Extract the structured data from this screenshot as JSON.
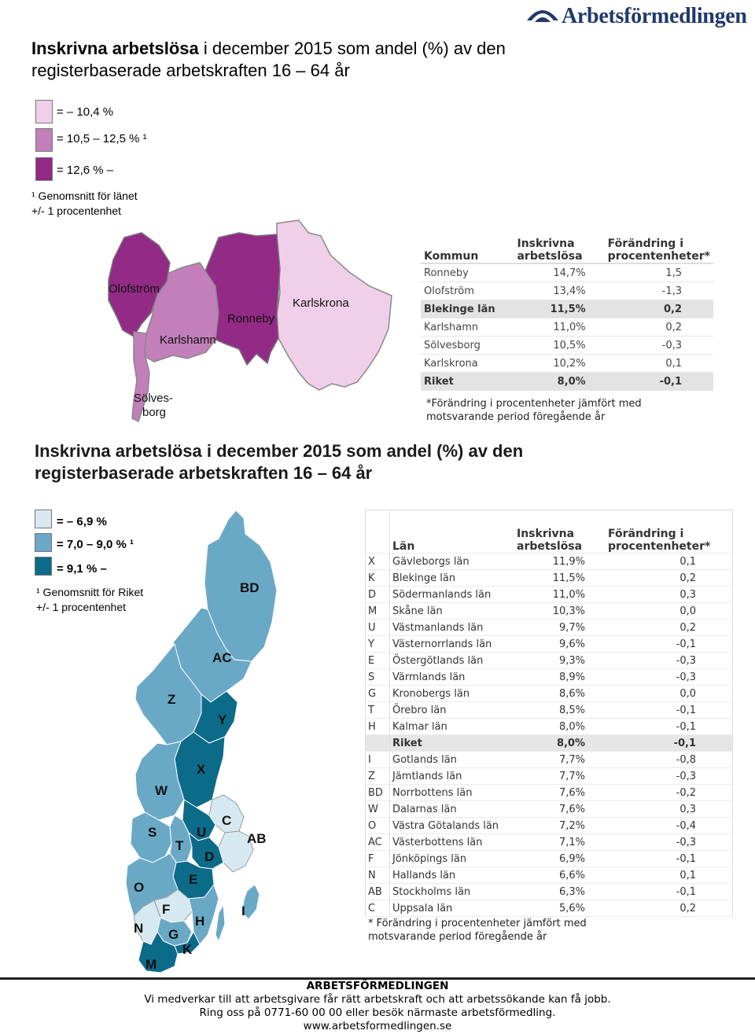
{
  "logo": {
    "text": "Arbetsförmedlingen",
    "icon": "arbetsformedlingen-logo-icon"
  },
  "title1": {
    "bold": "Inskrivna arbetslösa",
    "rest": " i december 2015 som andel (%) av den registerbaserade arbetskraften 16 – 64 år"
  },
  "legend1": {
    "items": [
      "= – 10,4 %",
      "= 10,5 – 12,5 % ¹",
      "= 12,6 % –"
    ],
    "colors": [
      "#f0d0e8",
      "#c27fba",
      "#922a86"
    ],
    "note_line1": "¹ Genomsnitt för länet",
    "note_line2": "+/- 1 procentenhet"
  },
  "region_map": {
    "labels": [
      "Olofström",
      "Karlshamn",
      "Ronneby",
      "Karlskrona",
      "Sölves-",
      "borg"
    ]
  },
  "table1": {
    "headers": [
      "Kommun",
      "Inskrivna arbetslösa",
      "Förändring i procentenheter*"
    ],
    "rows": [
      {
        "name": "Ronneby",
        "value": "14,7%",
        "change": "1,5",
        "hl": false
      },
      {
        "name": "Olofström",
        "value": "13,4%",
        "change": "-1,3",
        "hl": false
      },
      {
        "name": "Blekinge län",
        "value": "11,5%",
        "change": "0,2",
        "hl": true
      },
      {
        "name": "Karlshamn",
        "value": "11,0%",
        "change": "0,2",
        "hl": false
      },
      {
        "name": "Sölvesborg",
        "value": "10,5%",
        "change": "-0,3",
        "hl": false
      },
      {
        "name": "Karlskrona",
        "value": "10,2%",
        "change": "0,1",
        "hl": false
      },
      {
        "name": "Riket",
        "value": "8,0%",
        "change": "-0,1",
        "hl": true
      }
    ],
    "note_line1": "*Förändring i procentenheter jämfört med",
    "note_line2": "motsvarande period föregående år"
  },
  "title2": "Inskrivna arbetslösa i december 2015 som andel (%) av den registerbaserade arbetskraften 16 – 64 år",
  "legend2": {
    "items": [
      "= – 6,9 %",
      "= 7,0 – 9,0 % ¹",
      "= 9,1 % –"
    ],
    "colors": [
      "#d6e9f0",
      "#6aa9c6",
      "#0d6b8a"
    ],
    "note_line1": "¹ Genomsnitt för Riket",
    "note_line2": "+/- 1 procentenhet"
  },
  "sweden_map": {
    "labels": [
      "BD",
      "AC",
      "Z",
      "Y",
      "X",
      "W",
      "C",
      "S",
      "U",
      "AB",
      "T",
      "D",
      "O",
      "E",
      "F",
      "H",
      "I",
      "N",
      "G",
      "K",
      "M"
    ]
  },
  "table2": {
    "headers": [
      "",
      "Län",
      "Inskrivna arbetslösa",
      "Förändring i procentenheter*"
    ],
    "rows": [
      {
        "code": "X",
        "name": "Gävleborgs län",
        "value": "11,9%",
        "change": "0,1",
        "hl": false
      },
      {
        "code": "K",
        "name": "Blekinge län",
        "value": "11,5%",
        "change": "0,2",
        "hl": false
      },
      {
        "code": "D",
        "name": "Södermanlands län",
        "value": "11,0%",
        "change": "0,3",
        "hl": false
      },
      {
        "code": "M",
        "name": "Skåne län",
        "value": "10,3%",
        "change": "0,0",
        "hl": false
      },
      {
        "code": "U",
        "name": "Västmanlands län",
        "value": "9,7%",
        "change": "0,2",
        "hl": false
      },
      {
        "code": "Y",
        "name": "Västernorrlands län",
        "value": "9,6%",
        "change": "-0,1",
        "hl": false
      },
      {
        "code": "E",
        "name": "Östergötlands län",
        "value": "9,3%",
        "change": "-0,3",
        "hl": false
      },
      {
        "code": "S",
        "name": "Värmlands län",
        "value": "8,9%",
        "change": "-0,3",
        "hl": false
      },
      {
        "code": "G",
        "name": "Kronobergs län",
        "value": "8,6%",
        "change": "0,0",
        "hl": false
      },
      {
        "code": "T",
        "name": "Örebro län",
        "value": "8,5%",
        "change": "-0,1",
        "hl": false
      },
      {
        "code": "H",
        "name": "Kalmar län",
        "value": "8,0%",
        "change": "-0,1",
        "hl": false
      },
      {
        "code": "",
        "name": "Riket",
        "value": "8,0%",
        "change": "-0,1",
        "hl": true
      },
      {
        "code": "I",
        "name": "Gotlands län",
        "value": "7,7%",
        "change": "-0,8",
        "hl": false
      },
      {
        "code": "Z",
        "name": "Jämtlands län",
        "value": "7,7%",
        "change": "-0,3",
        "hl": false
      },
      {
        "code": "BD",
        "name": "Norrbottens län",
        "value": "7,6%",
        "change": "-0,2",
        "hl": false
      },
      {
        "code": "W",
        "name": "Dalarnas län",
        "value": "7,6%",
        "change": "0,3",
        "hl": false
      },
      {
        "code": "O",
        "name": "Västra Götalands län",
        "value": "7,2%",
        "change": "-0,4",
        "hl": false
      },
      {
        "code": "AC",
        "name": "Västerbottens län",
        "value": "7,1%",
        "change": "-0,3",
        "hl": false
      },
      {
        "code": "F",
        "name": "Jönköpings län",
        "value": "6,9%",
        "change": "-0,1",
        "hl": false
      },
      {
        "code": "N",
        "name": "Hallands län",
        "value": "6,6%",
        "change": "0,1",
        "hl": false
      },
      {
        "code": "AB",
        "name": "Stockholms län",
        "value": "6,3%",
        "change": "-0,1",
        "hl": false
      },
      {
        "code": "C",
        "name": "Uppsala län",
        "value": "5,6%",
        "change": "0,2",
        "hl": false
      }
    ],
    "note_line1": "* Förändring i procentenheter jämfört med",
    "note_line2": "motsvarande period föregående år"
  },
  "footer": {
    "org": "ARBETSFÖRMEDLINGEN",
    "line1": "Vi medverkar till att arbetsgivare får rätt arbetskraft och att arbetssökande kan få jobb.",
    "line2": "Ring oss på 0771-60 00 00 eller besök närmaste arbetsförmedling.",
    "url": "www.arbetsformedlingen.se"
  }
}
